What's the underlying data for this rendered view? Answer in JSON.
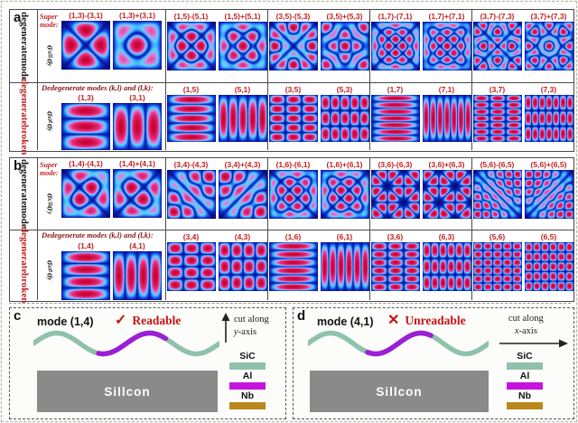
{
  "colors": {
    "mode_label_red": "#c42121",
    "header_maroon": "#8b1414",
    "broken_red": "#c22323",
    "panel_border": "#4a4a4a",
    "tile_navy": "#070c82",
    "sic_teal": "#8fc2ab",
    "al_magenta": "#c414de",
    "wave_purple": "#9c1ed6",
    "nb_gold": "#b9871b",
    "electrode_beige": "#ead8b0",
    "substrate_gray": "#8a8a8a",
    "verdict_red": "#c41414"
  },
  "panel_a": {
    "letter": "a",
    "row1": {
      "side": [
        "degenerate",
        "mode"
      ],
      "sigma": {
        "base1": "σ",
        "sub1": "x",
        "rel": "≡",
        "base2": "σ",
        "sub2": "y"
      },
      "header": "Super mode:",
      "groups": [
        {
          "labels": [
            "(1,3)-(3,1)",
            "(1,3)+(3,1)"
          ],
          "modes": [
            {
              "k": 1,
              "l": 3,
              "op": "minus"
            },
            {
              "k": 1,
              "l": 3,
              "op": "plus"
            }
          ]
        },
        {
          "labels": [
            "(1,5)-(5,1)",
            "(1,5)+(5,1)"
          ],
          "modes": [
            {
              "k": 1,
              "l": 5,
              "op": "minus"
            },
            {
              "k": 1,
              "l": 5,
              "op": "plus"
            }
          ]
        },
        {
          "labels": [
            "(3,5)-(5,3)",
            "(3,5)+(5,3)"
          ],
          "modes": [
            {
              "k": 3,
              "l": 5,
              "op": "minus"
            },
            {
              "k": 3,
              "l": 5,
              "op": "plus"
            }
          ]
        },
        {
          "labels": [
            "(1,7)-(7,1)",
            "(1,7)+(7,1)"
          ],
          "modes": [
            {
              "k": 1,
              "l": 7,
              "op": "minus"
            },
            {
              "k": 1,
              "l": 7,
              "op": "plus"
            }
          ]
        },
        {
          "labels": [
            "(3,7)-(7,3)",
            "(3,7)+(7,3)"
          ],
          "modes": [
            {
              "k": 3,
              "l": 7,
              "op": "minus"
            },
            {
              "k": 3,
              "l": 7,
              "op": "plus"
            }
          ]
        }
      ]
    },
    "row2": {
      "side": [
        "degenerate",
        "broken"
      ],
      "sigma": {
        "base1": "σ",
        "sub1": "x",
        "rel": "≠",
        "base2": "σ",
        "sub2": "y"
      },
      "header": "Dedegenerate modes (k,l) and (l,k):",
      "groups": [
        {
          "labels": [
            "(1,3)",
            "(3,1)"
          ],
          "modes": [
            {
              "k": 1,
              "l": 3,
              "op": "single"
            },
            {
              "k": 3,
              "l": 1,
              "op": "single"
            }
          ]
        },
        {
          "labels": [
            "(1,5)",
            "(5,1)"
          ],
          "modes": [
            {
              "k": 1,
              "l": 5,
              "op": "single"
            },
            {
              "k": 5,
              "l": 1,
              "op": "single"
            }
          ]
        },
        {
          "labels": [
            "(3,5)",
            "(5,3)"
          ],
          "modes": [
            {
              "k": 3,
              "l": 5,
              "op": "single"
            },
            {
              "k": 5,
              "l": 3,
              "op": "single"
            }
          ]
        },
        {
          "labels": [
            "(1,7)",
            "(7,1)"
          ],
          "modes": [
            {
              "k": 1,
              "l": 7,
              "op": "single"
            },
            {
              "k": 7,
              "l": 1,
              "op": "single"
            }
          ]
        },
        {
          "labels": [
            "(3,7)",
            "(7,3)"
          ],
          "modes": [
            {
              "k": 3,
              "l": 7,
              "op": "single"
            },
            {
              "k": 7,
              "l": 3,
              "op": "single"
            }
          ]
        }
      ]
    }
  },
  "panel_b": {
    "letter": "b",
    "row1": {
      "side": [
        "degenerate",
        "mode"
      ],
      "sigma": {
        "base1": "σ",
        "sub1": "x",
        "rel": "≡",
        "base2": "σ",
        "sub2": "y"
      },
      "header": "Super mode:",
      "groups": [
        {
          "labels": [
            "(1,4)-(4,1)",
            "(1,4)+(4,1)"
          ],
          "modes": [
            {
              "k": 1,
              "l": 4,
              "op": "minus"
            },
            {
              "k": 1,
              "l": 4,
              "op": "plus"
            }
          ]
        },
        {
          "labels": [
            "(3,4)-(4,3)",
            "(3,4)+(4,3)"
          ],
          "modes": [
            {
              "k": 3,
              "l": 4,
              "op": "minus"
            },
            {
              "k": 3,
              "l": 4,
              "op": "plus"
            }
          ]
        },
        {
          "labels": [
            "(1,6)-(6,1)",
            "(1,6)+(6,1)"
          ],
          "modes": [
            {
              "k": 1,
              "l": 6,
              "op": "minus"
            },
            {
              "k": 1,
              "l": 6,
              "op": "plus"
            }
          ]
        },
        {
          "labels": [
            "(3,6)-(6,3)",
            "(3,6)+(6,3)"
          ],
          "modes": [
            {
              "k": 3,
              "l": 6,
              "op": "minus"
            },
            {
              "k": 3,
              "l": 6,
              "op": "plus"
            }
          ]
        },
        {
          "labels": [
            "(5,6)-(6,5)",
            "(5,6)+(6,5)"
          ],
          "modes": [
            {
              "k": 5,
              "l": 6,
              "op": "minus"
            },
            {
              "k": 5,
              "l": 6,
              "op": "plus"
            }
          ]
        }
      ]
    },
    "row2": {
      "side": [
        "degenerate",
        "broken"
      ],
      "sigma": {
        "base1": "σ",
        "sub1": "x",
        "rel": "≠",
        "base2": "σ",
        "sub2": "y"
      },
      "header": "Dedegenerate modes (k,l) and (l,k):",
      "groups": [
        {
          "labels": [
            "(1,4)",
            "(4,1)"
          ],
          "modes": [
            {
              "k": 1,
              "l": 4,
              "op": "single"
            },
            {
              "k": 4,
              "l": 1,
              "op": "single"
            }
          ]
        },
        {
          "labels": [
            "(3,4)",
            "(4,3)"
          ],
          "modes": [
            {
              "k": 3,
              "l": 4,
              "op": "single"
            },
            {
              "k": 4,
              "l": 3,
              "op": "single"
            }
          ]
        },
        {
          "labels": [
            "(1,6)",
            "(6,1)"
          ],
          "modes": [
            {
              "k": 1,
              "l": 6,
              "op": "single"
            },
            {
              "k": 6,
              "l": 1,
              "op": "single"
            }
          ]
        },
        {
          "labels": [
            "(3,6)",
            "(6,3)"
          ],
          "modes": [
            {
              "k": 3,
              "l": 6,
              "op": "single"
            },
            {
              "k": 6,
              "l": 3,
              "op": "single"
            }
          ]
        },
        {
          "labels": [
            "(5,6)",
            "(6,5)"
          ],
          "modes": [
            {
              "k": 5,
              "l": 6,
              "op": "single"
            },
            {
              "k": 6,
              "l": 5,
              "op": "single"
            }
          ]
        }
      ]
    }
  },
  "panel_c": {
    "letter": "c",
    "mode_label": "mode (1,4)",
    "verdict_icon": "✓",
    "verdict_text": "Readable",
    "cut_line1": "cut along",
    "cut_line2": "y-axis",
    "substrate_label": "Sillcon",
    "electrodes": [
      "#b9871b",
      "#b9871b",
      "#ead8b0"
    ],
    "legend": [
      {
        "label": "SiC",
        "color": "#8fc2ab"
      },
      {
        "label": "Al",
        "color": "#c414de"
      },
      {
        "label": "Nb",
        "color": "#b9871b"
      }
    ]
  },
  "panel_d": {
    "letter": "d",
    "mode_label": "mode (4,1)",
    "verdict_icon": "✕",
    "verdict_text": "Unreadable",
    "cut_line1": "cut along",
    "cut_line2": "x-axis",
    "substrate_label": "Sillcon",
    "electrodes": [
      "#b9871b",
      "#b9871b",
      "#b9871b"
    ],
    "legend": [
      {
        "label": "SiC",
        "color": "#8fc2ab"
      },
      {
        "label": "Al",
        "color": "#c414de"
      },
      {
        "label": "Nb",
        "color": "#b9871b"
      }
    ]
  }
}
